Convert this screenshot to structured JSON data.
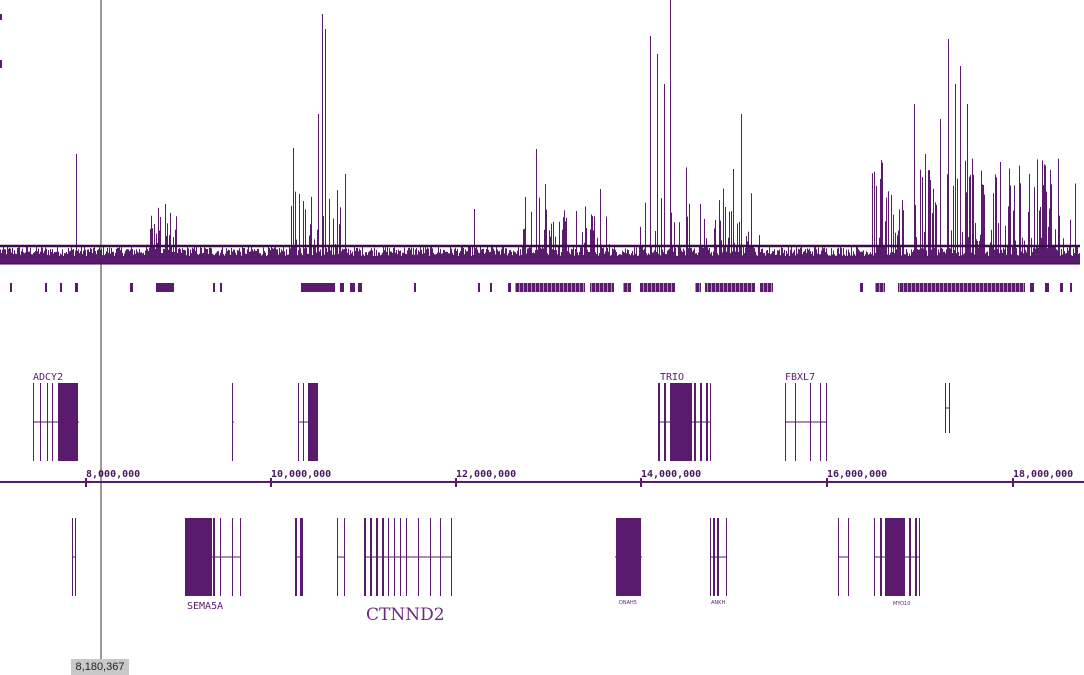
{
  "colors": {
    "track": "#5a1a6e",
    "track_dark": "#3a0a4c",
    "cursor": "#333333",
    "readout_bg": "#c8c8c8"
  },
  "axis": {
    "ticks": [
      "8,000,000",
      "10,000,000",
      "12,000,000",
      "14,000,000",
      "16,000,000",
      "18,000,000"
    ]
  },
  "genes_top": [
    {
      "label": "ADCY2"
    },
    {
      "label": "TRIO"
    },
    {
      "label": "FBXL7"
    }
  ],
  "genes_bottom": [
    {
      "label": "SEMA5A"
    },
    {
      "label": "CTNND2"
    },
    {
      "label": "DNAH5"
    },
    {
      "label": "ANKH"
    },
    {
      "label": "MYO10"
    }
  ],
  "cursor": {
    "position_label": "8,180,367"
  }
}
